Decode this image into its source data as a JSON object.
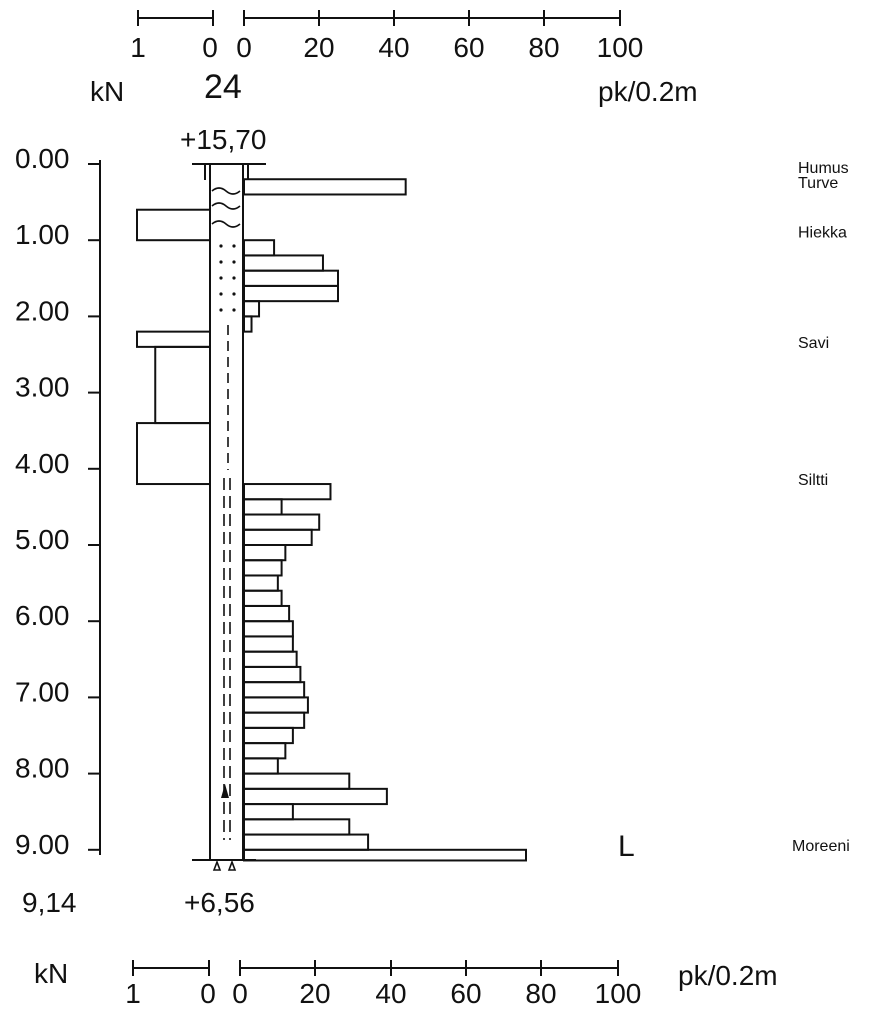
{
  "header": {
    "kn_scale_ticks": [
      "1",
      "0"
    ],
    "pk_scale_ticks": [
      "0",
      "20",
      "40",
      "60",
      "80",
      "100"
    ],
    "kn_unit": "kN",
    "pk_unit": "pk/0.2m",
    "point_id": "24",
    "top_elevation": "+15,70"
  },
  "footer": {
    "kn_unit": "kN",
    "pk_unit": "pk/0.2m",
    "kn_scale_ticks": [
      "1",
      "0"
    ],
    "pk_scale_ticks": [
      "0",
      "20",
      "40",
      "60",
      "80",
      "100"
    ]
  },
  "depth_labels": [
    "0.00",
    "1.00",
    "2.00",
    "3.00",
    "4.00",
    "5.00",
    "6.00",
    "7.00",
    "8.00",
    "9.00"
  ],
  "bottom": {
    "depth": "9,14",
    "elevation": "+6,56",
    "end_mark": "L"
  },
  "soil_layers": [
    {
      "name": "Humus",
      "depth_m": 0.05
    },
    {
      "name": "Turve",
      "depth_m": 0.25
    },
    {
      "name": "Hiekka",
      "depth_m": 0.9
    },
    {
      "name": "Savi",
      "depth_m": 2.35
    },
    {
      "name": "Siltti",
      "depth_m": 4.15
    },
    {
      "name": "Moreeni",
      "depth_m": 8.95
    }
  ],
  "chart_data": {
    "type": "step-profile",
    "y_axis": {
      "unit": "m",
      "range": [
        0,
        9.14
      ]
    },
    "kn_axis": {
      "unit": "kN",
      "range": [
        0,
        1
      ]
    },
    "pk_axis": {
      "unit": "pk/0.2m",
      "range": [
        0,
        100
      ]
    },
    "kn_series": [
      {
        "from": 0.6,
        "to": 1.0,
        "value": 1.0
      },
      {
        "from": 2.2,
        "to": 2.4,
        "value": 1.0
      },
      {
        "from": 2.4,
        "to": 3.4,
        "value": 0.75
      },
      {
        "from": 3.4,
        "to": 4.2,
        "value": 1.0
      }
    ],
    "pk_series": [
      {
        "from": 0.2,
        "to": 0.4,
        "value": 43
      },
      {
        "from": 0.4,
        "to": 1.0,
        "value": 0
      },
      {
        "from": 1.0,
        "to": 1.2,
        "value": 8
      },
      {
        "from": 1.2,
        "to": 1.4,
        "value": 21
      },
      {
        "from": 1.4,
        "to": 1.6,
        "value": 25
      },
      {
        "from": 1.6,
        "to": 1.8,
        "value": 25
      },
      {
        "from": 1.8,
        "to": 2.0,
        "value": 4
      },
      {
        "from": 2.0,
        "to": 2.2,
        "value": 2
      },
      {
        "from": 4.2,
        "to": 4.4,
        "value": 23
      },
      {
        "from": 4.4,
        "to": 4.6,
        "value": 10
      },
      {
        "from": 4.6,
        "to": 4.8,
        "value": 20
      },
      {
        "from": 4.8,
        "to": 5.0,
        "value": 18
      },
      {
        "from": 5.0,
        "to": 5.2,
        "value": 11
      },
      {
        "from": 5.2,
        "to": 5.4,
        "value": 10
      },
      {
        "from": 5.4,
        "to": 5.6,
        "value": 9
      },
      {
        "from": 5.6,
        "to": 5.8,
        "value": 10
      },
      {
        "from": 5.8,
        "to": 6.0,
        "value": 12
      },
      {
        "from": 6.0,
        "to": 6.2,
        "value": 13
      },
      {
        "from": 6.2,
        "to": 6.4,
        "value": 13
      },
      {
        "from": 6.4,
        "to": 6.6,
        "value": 14
      },
      {
        "from": 6.6,
        "to": 6.8,
        "value": 15
      },
      {
        "from": 6.8,
        "to": 7.0,
        "value": 16
      },
      {
        "from": 7.0,
        "to": 7.2,
        "value": 17
      },
      {
        "from": 7.2,
        "to": 7.4,
        "value": 16
      },
      {
        "from": 7.4,
        "to": 7.6,
        "value": 13
      },
      {
        "from": 7.6,
        "to": 7.8,
        "value": 11
      },
      {
        "from": 7.8,
        "to": 8.0,
        "value": 9
      },
      {
        "from": 8.0,
        "to": 8.2,
        "value": 28
      },
      {
        "from": 8.2,
        "to": 8.4,
        "value": 38
      },
      {
        "from": 8.4,
        "to": 8.6,
        "value": 13
      },
      {
        "from": 8.6,
        "to": 8.8,
        "value": 28
      },
      {
        "from": 8.8,
        "to": 9.0,
        "value": 33
      },
      {
        "from": 9.0,
        "to": 9.14,
        "value": 75
      }
    ]
  }
}
